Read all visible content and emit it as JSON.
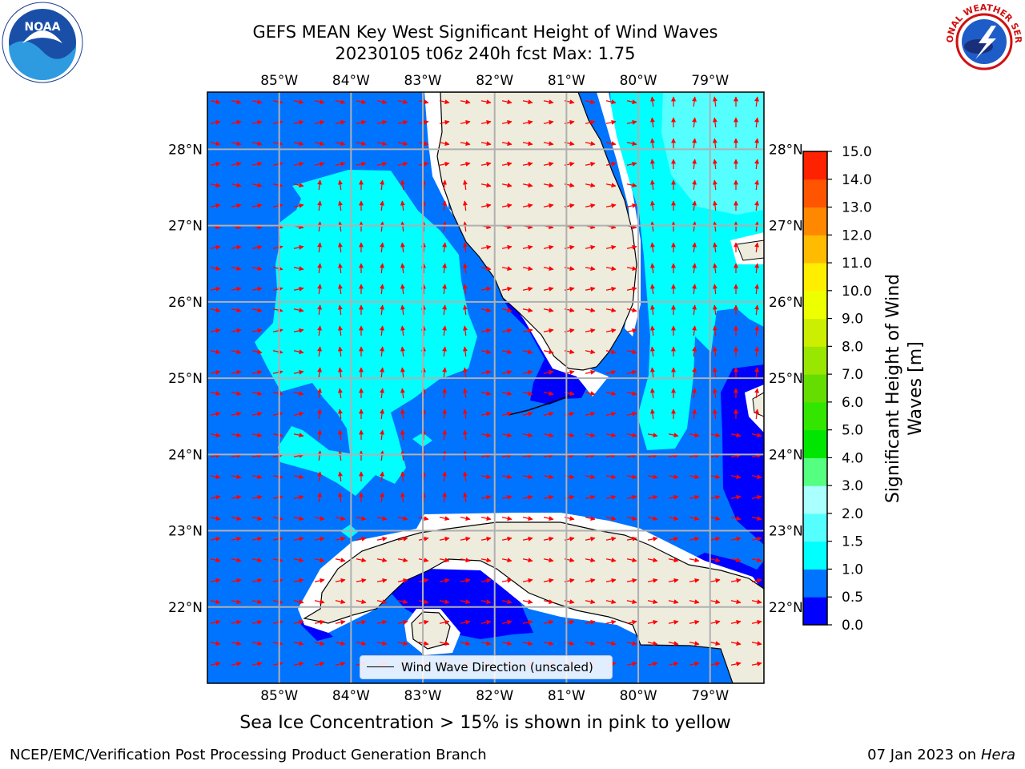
{
  "title": {
    "line1": "GEFS MEAN Key West Significant Height of Wind Waves",
    "line2": "20230105 t06z 240h fcst   Max: 1.75"
  },
  "logos": {
    "left": {
      "name": "noaa-logo",
      "text": "NOAA"
    },
    "right": {
      "name": "nws-logo",
      "text": "NATIONAL WEATHER SERVICE"
    }
  },
  "map": {
    "lon_labels": [
      "85°W",
      "84°W",
      "83°W",
      "82°W",
      "81°W",
      "80°W",
      "79°W"
    ],
    "lat_labels": [
      "28°N",
      "27°N",
      "26°N",
      "25°N",
      "24°N",
      "23°N",
      "22°N"
    ],
    "lon_range": [
      -86.0,
      -78.25
    ],
    "lat_range": [
      21.0,
      28.75
    ],
    "gridlines": true,
    "colors": {
      "land": "#eeecdd",
      "wave_0_0_5": "#0000ff",
      "wave_0_5_1_0": "#0073ff",
      "wave_1_0_1_5": "#00ffff",
      "wave_1_5_2_0": "#55ffff",
      "arrow": "#ff0000",
      "grid": "#b0b0b0"
    },
    "wave_max": 1.75
  },
  "legend": {
    "label": "Wind Wave Direction (unscaled)"
  },
  "colorbar": {
    "title_line1": "Significant Height of Wind",
    "title_line2": "Waves [m]",
    "ticks": [
      "0.0",
      "0.5",
      "1.0",
      "1.5",
      "2.0",
      "3.0",
      "4.0",
      "5.0",
      "6.0",
      "7.0",
      "8.0",
      "9.0",
      "10.0",
      "11.0",
      "12.0",
      "13.0",
      "14.0",
      "15.0"
    ],
    "colors": [
      "#0000ff",
      "#0073ff",
      "#00ffff",
      "#55ffff",
      "#aaffff",
      "#55ff80",
      "#00e600",
      "#33e600",
      "#66dd00",
      "#99e600",
      "#ccee00",
      "#eeff00",
      "#ffee00",
      "#ffbb00",
      "#ff8800",
      "#ff5500",
      "#ff2200",
      "#ff0000"
    ]
  },
  "ice_note": "Sea Ice Concentration > 15% is shown in pink to yellow",
  "footer": {
    "left": "NCEP/EMC/Verification Post Processing Product Generation Branch",
    "right_date": "07 Jan 2023 on",
    "right_machine": "Hera"
  }
}
